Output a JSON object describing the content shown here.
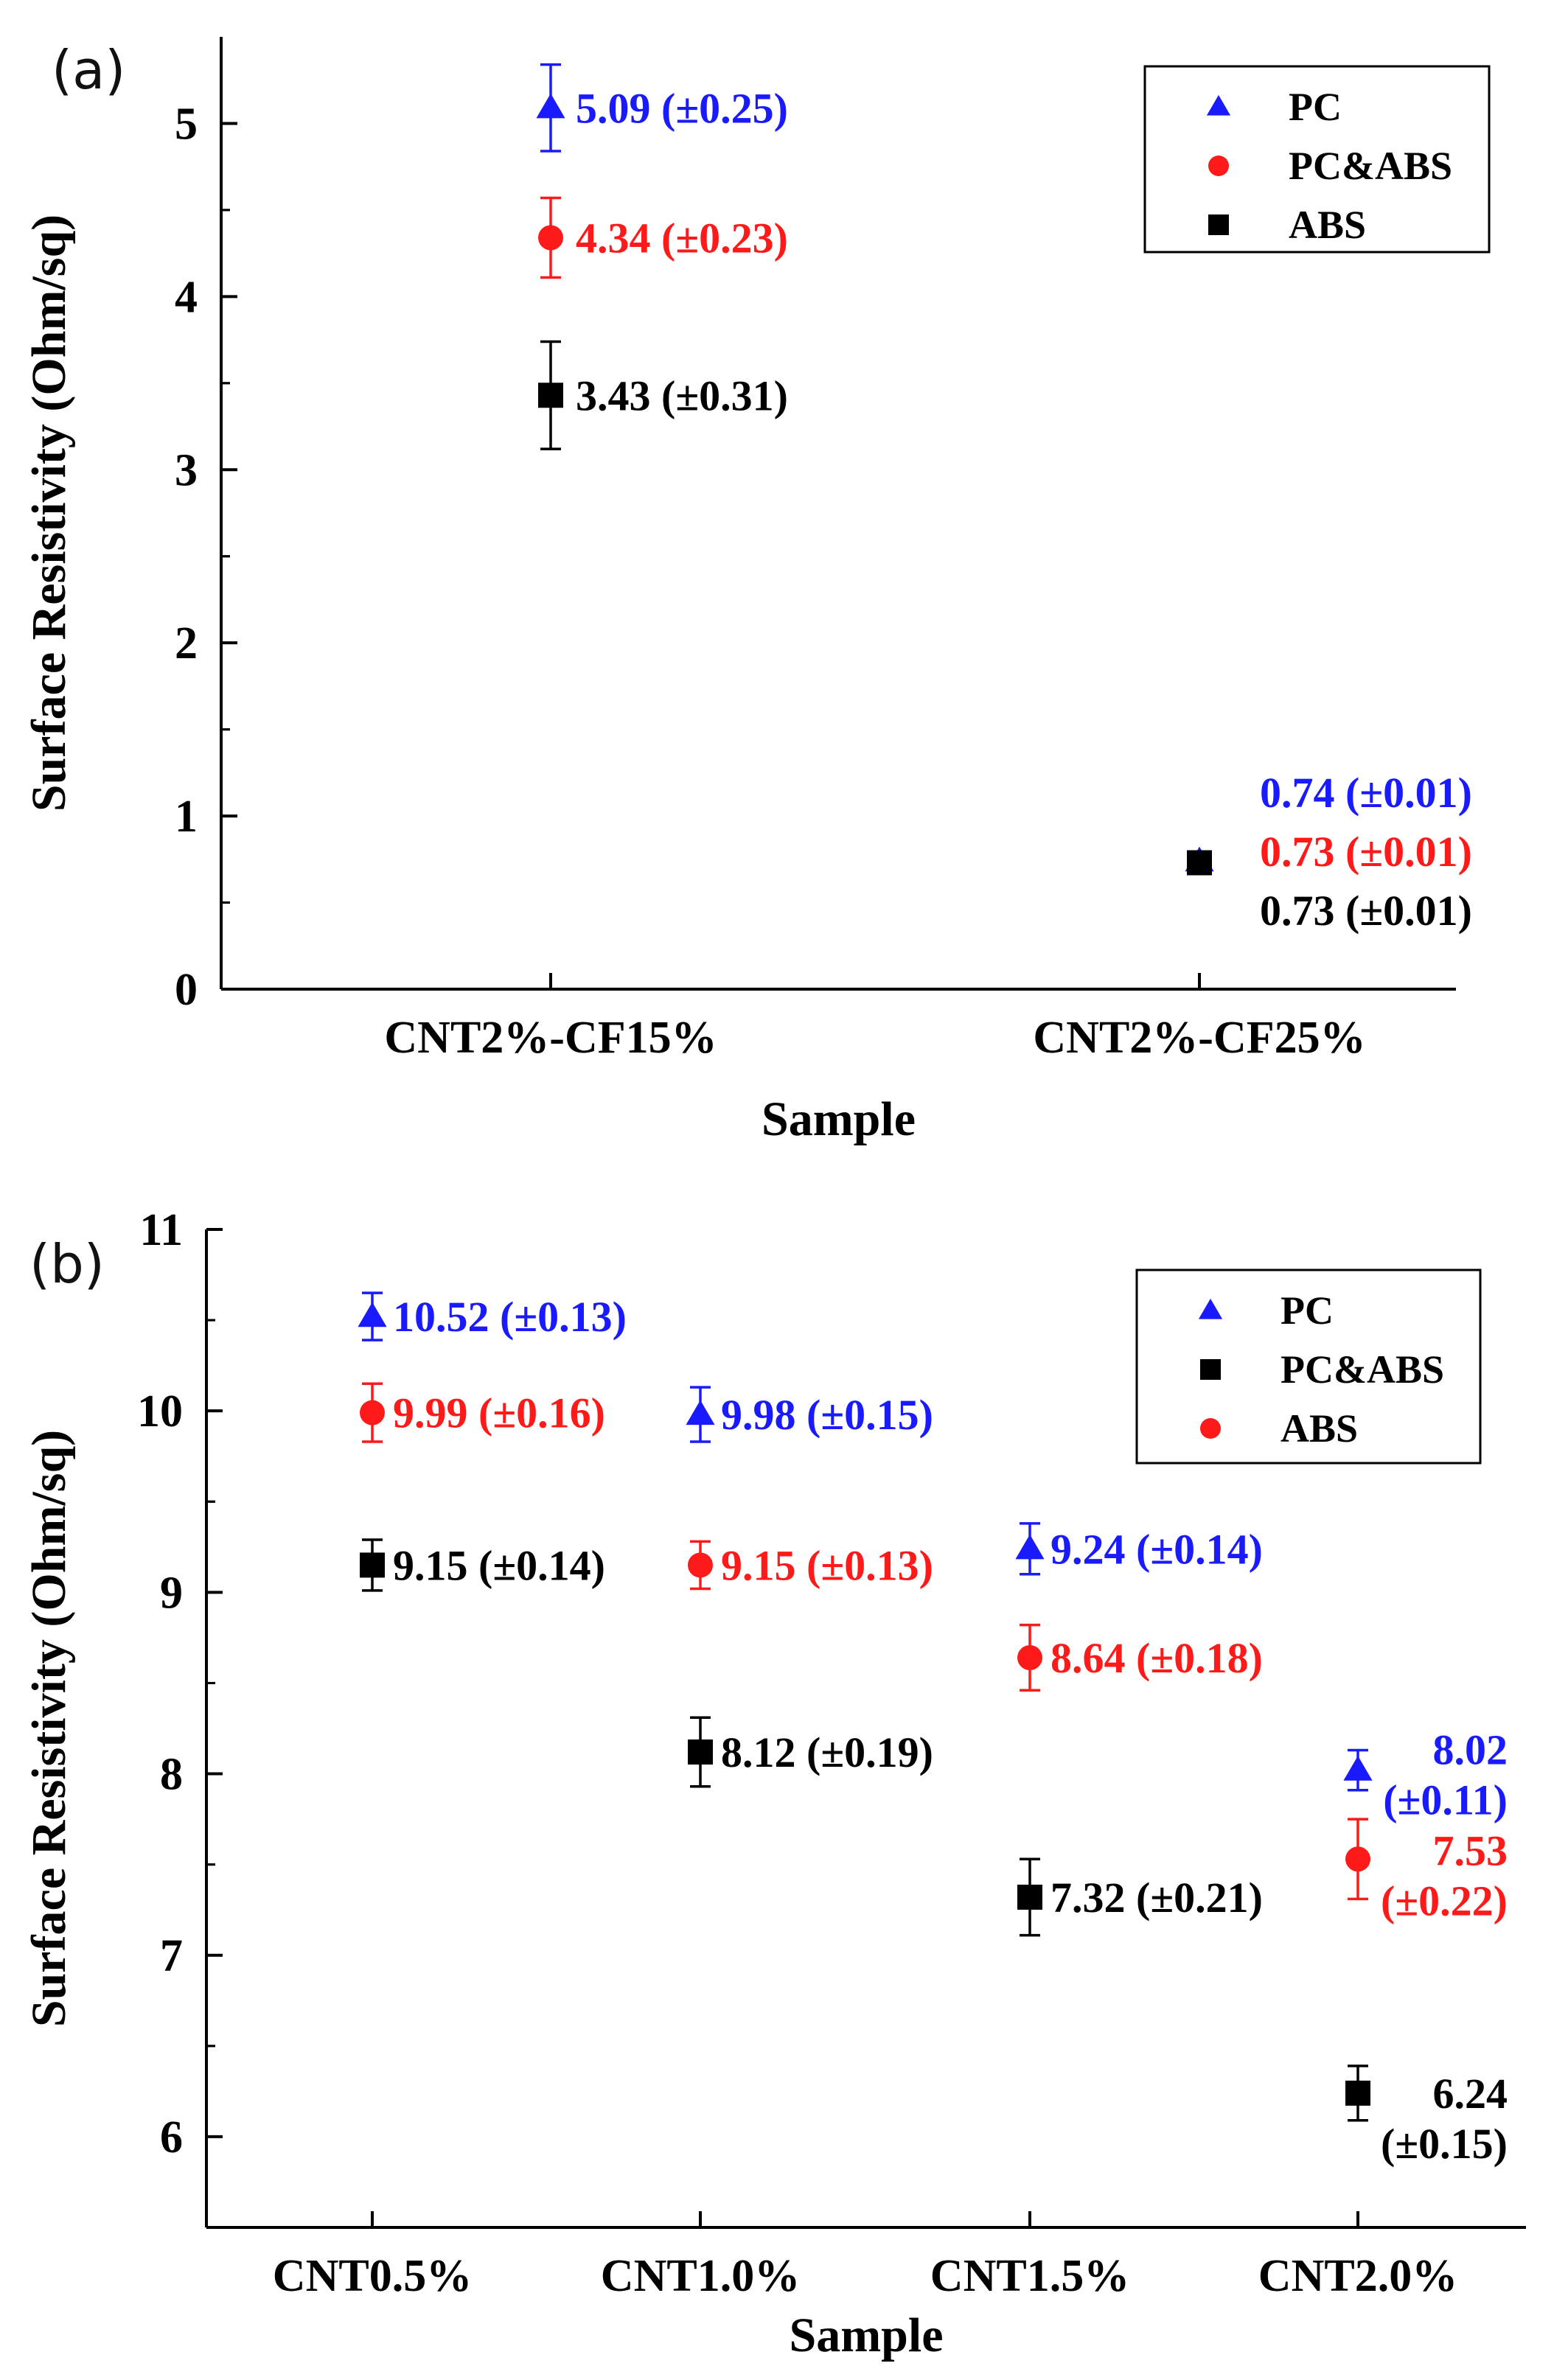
{
  "chart_data": [
    {
      "type": "scatter",
      "panel_label": "(a)",
      "title": "",
      "xlabel": "Sample",
      "ylabel": "Surface Resistivity (Ohm/sq)",
      "categories": [
        "CNT2%-CF15%",
        "CNT2%-CF25%"
      ],
      "ylim": [
        0,
        5.5
      ],
      "yticks": [
        "0",
        "1",
        "2",
        "3",
        "4",
        "5"
      ],
      "legend_position": "top-right",
      "series": [
        {
          "name": "PC",
          "marker": "triangle",
          "color": "#1a1aff",
          "values": [
            5.09,
            0.74
          ],
          "errors": [
            0.25,
            0.01
          ],
          "labels": [
            "5.09 (±0.25)",
            "0.74 (±0.01)"
          ]
        },
        {
          "name": "PC&ABS",
          "marker": "circle",
          "color": "#ff1a1a",
          "values": [
            4.34,
            0.73
          ],
          "errors": [
            0.23,
            0.01
          ],
          "labels": [
            "4.34 (±0.23)",
            "0.73 (±0.01)"
          ]
        },
        {
          "name": "ABS",
          "marker": "square",
          "color": "#000000",
          "values": [
            3.43,
            0.73
          ],
          "errors": [
            0.31,
            0.01
          ],
          "labels": [
            "3.43 (±0.31)",
            "0.73 (±0.01)"
          ]
        }
      ]
    },
    {
      "type": "scatter",
      "panel_label": "(b)",
      "title": "",
      "xlabel": "Sample",
      "ylabel": "Surface Resistivity (Ohm/sq)",
      "categories": [
        "CNT0.5%",
        "CNT1.0%",
        "CNT1.5%",
        "CNT2.0%"
      ],
      "ylim": [
        5.5,
        11
      ],
      "yticks": [
        "6",
        "7",
        "8",
        "9",
        "10",
        "11"
      ],
      "legend_position": "top-right",
      "series": [
        {
          "name": "PC",
          "marker": "triangle",
          "color": "#1a1aff",
          "values": [
            10.52,
            9.98,
            9.24,
            8.02
          ],
          "errors": [
            0.13,
            0.15,
            0.14,
            0.11
          ],
          "labels": [
            "10.52 (±0.13)",
            "9.98 (±0.15)",
            "9.24 (±0.14)",
            "8.02\n(±0.11)"
          ]
        },
        {
          "name": "PC&ABS",
          "marker": "square",
          "color": "#000000",
          "values": [
            9.15,
            8.12,
            7.32,
            6.24
          ],
          "errors": [
            0.14,
            0.19,
            0.21,
            0.15
          ],
          "labels": [
            "9.15 (±0.14)",
            "8.12 (±0.19)",
            "7.32 (±0.21)",
            "6.24\n(±0.15)"
          ]
        },
        {
          "name": "ABS",
          "marker": "circle",
          "color": "#ff1a1a",
          "values": [
            9.99,
            9.15,
            8.64,
            7.53
          ],
          "errors": [
            0.16,
            0.13,
            0.18,
            0.22
          ],
          "labels": [
            "9.99 (±0.16)",
            "9.15 (±0.13)",
            "8.64 (±0.18)",
            "7.53\n(±0.22)"
          ]
        }
      ]
    }
  ]
}
